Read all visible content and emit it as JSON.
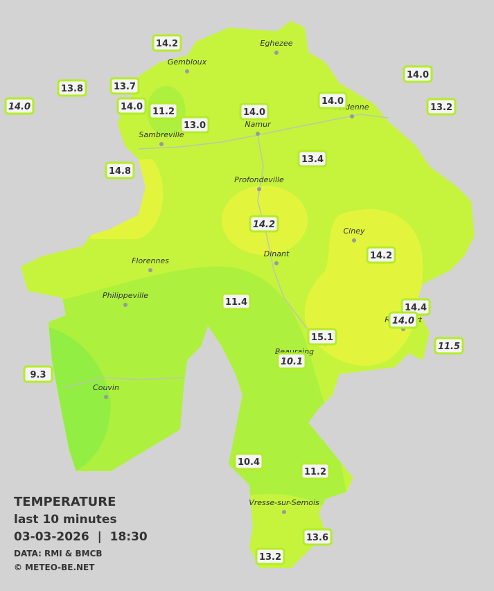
{
  "legend": {
    "title": "TEMPERATURE",
    "subtitle": "last 10 minutes",
    "timestamp": "03-03-2026  |  18:30",
    "source": "DATA: RMI & BMCB",
    "copyright": "© METEO-BE.NET"
  },
  "cities": [
    "Eghezee",
    "Gembloux",
    "Andenne",
    "Namur",
    "Sambreville",
    "Profondeville",
    "Ciney",
    "Florennes",
    "Dinant",
    "Philippeville",
    "Rochefort",
    "Beauraing",
    "Couvin",
    "Vresse-sur-Semois"
  ],
  "stations": [
    "14.2",
    "13.8",
    "13.7",
    "14.0",
    "14.0",
    "11.2",
    "13.0",
    "14.0",
    "14.0",
    "14.0",
    "13.2",
    "14.8",
    "13.4",
    "14.2",
    "14.2",
    "11.4",
    "14.4",
    "14.0",
    "15.1",
    "11.5",
    "10.1",
    "9.3",
    "10.4",
    "11.2",
    "13.6",
    "13.2"
  ]
}
